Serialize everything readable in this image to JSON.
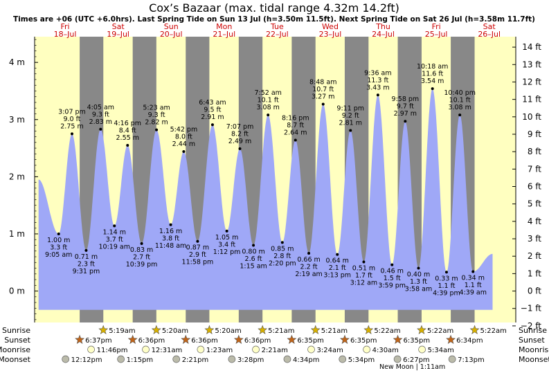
{
  "header": {
    "title": "Cox’s Bazaar (max. tidal range 4.32m 14.2ft)",
    "subtitle": "Times are +06 (UTC +6.0hrs). Last Spring Tide on Sun 13 Jul (h=3.50m 11.5ft). Next Spring Tide on Sat 26 Jul (h=3.58m 11.7ft)"
  },
  "chart_data": {
    "type": "area",
    "title": "Cox’s Bazaar (max. tidal range 4.32m 14.2ft)",
    "x_unit": "hours since 00:00 Fri 18-Jul (+06)",
    "left_axis": {
      "ticks": [
        "0 m",
        "1 m",
        "2 m",
        "3 m",
        "4 m"
      ],
      "values": [
        0,
        1,
        2,
        3,
        4
      ],
      "ylim_m": [
        -0.55,
        4.45
      ]
    },
    "right_axis": {
      "ticks": [
        "−2 ft",
        "−1 ft",
        "0 ft",
        "1 ft",
        "2 ft",
        "3 ft",
        "4 ft",
        "5 ft",
        "6 ft",
        "7 ft",
        "8 ft",
        "9 ft",
        "10 ft",
        "11 ft",
        "12 ft",
        "13 ft",
        "14 ft"
      ],
      "values": [
        -2,
        -1,
        0,
        1,
        2,
        3,
        4,
        5,
        6,
        7,
        8,
        9,
        10,
        11,
        12,
        13,
        14
      ]
    },
    "days": [
      {
        "dow": "Fri",
        "date": "18–Jul"
      },
      {
        "dow": "Sat",
        "date": "19–Jul"
      },
      {
        "dow": "Sun",
        "date": "20–Jul"
      },
      {
        "dow": "Mon",
        "date": "21–Jul"
      },
      {
        "dow": "Tue",
        "date": "22–Jul"
      },
      {
        "dow": "Wed",
        "date": "23–Jul"
      },
      {
        "dow": "Thu",
        "date": "24–Jul"
      },
      {
        "dow": "Fri",
        "date": "25–Jul"
      },
      {
        "dow": "Sat",
        "date": "26–Jul"
      }
    ],
    "night_bands": [
      {
        "from": 18.6,
        "to": 29.3
      },
      {
        "from": 42.6,
        "to": 53.3
      },
      {
        "from": 66.6,
        "to": 77.3
      },
      {
        "from": 90.6,
        "to": 101.35
      },
      {
        "from": 114.58,
        "to": 125.35
      },
      {
        "from": 138.58,
        "to": 149.35
      },
      {
        "from": 162.58,
        "to": 173.37
      },
      {
        "from": 186.57,
        "to": 197.37
      }
    ],
    "curve_start": {
      "t": 0,
      "h": 1.95
    },
    "curve_end": {
      "t": 205.5,
      "h": 0.65
    },
    "series": [
      {
        "name": "tides",
        "points": [
          {
            "t": 9.08,
            "h": 1.0,
            "type": "low",
            "lines": [
              "1.00 m",
              "3.3 ft",
              "9:05 am"
            ]
          },
          {
            "t": 15.12,
            "h": 2.75,
            "type": "high",
            "lines": [
              "3:07 pm",
              "9.0 ft",
              "2.75 m"
            ]
          },
          {
            "t": 21.52,
            "h": 0.71,
            "type": "low",
            "lines": [
              "0.71 m",
              "2.3 ft",
              "9:31 pm"
            ]
          },
          {
            "t": 28.08,
            "h": 2.83,
            "type": "high",
            "lines": [
              "4:05 am",
              "9.3 ft",
              "2.83 m"
            ]
          },
          {
            "t": 34.32,
            "h": 1.14,
            "type": "low",
            "lines": [
              "1.14 m",
              "3.7 ft",
              "10:19 am"
            ]
          },
          {
            "t": 40.27,
            "h": 2.55,
            "type": "high",
            "lines": [
              "4:16 pm",
              "8.4 ft",
              "2.55 m"
            ]
          },
          {
            "t": 46.65,
            "h": 0.83,
            "type": "low",
            "lines": [
              "0.83 m",
              "2.7 ft",
              "10:39 pm"
            ]
          },
          {
            "t": 53.38,
            "h": 2.82,
            "type": "high",
            "lines": [
              "5:23 am",
              "9.3 ft",
              "2.82 m"
            ]
          },
          {
            "t": 59.8,
            "h": 1.16,
            "type": "low",
            "lines": [
              "1.16 m",
              "3.8 ft",
              "11:48 am"
            ]
          },
          {
            "t": 65.7,
            "h": 2.44,
            "type": "high",
            "lines": [
              "5:42 pm",
              "8.0 ft",
              "2.44 m"
            ]
          },
          {
            "t": 71.97,
            "h": 0.87,
            "type": "low",
            "lines": [
              "0.87 m",
              "2.9 ft",
              "11:58 pm"
            ]
          },
          {
            "t": 78.72,
            "h": 2.91,
            "type": "high",
            "lines": [
              "6:43 am",
              "9.5 ft",
              "2.91 m"
            ]
          },
          {
            "t": 85.2,
            "h": 1.05,
            "type": "low",
            "lines": [
              "1.05 m",
              "3.4 ft",
              "1:12 pm"
            ]
          },
          {
            "t": 91.12,
            "h": 2.49,
            "type": "high",
            "lines": [
              "7:07 pm",
              "8.2 ft",
              "2.49 m"
            ]
          },
          {
            "t": 97.25,
            "h": 0.8,
            "type": "low",
            "lines": [
              "0.80 m",
              "2.6 ft",
              "1:15 am"
            ]
          },
          {
            "t": 103.87,
            "h": 3.08,
            "type": "high",
            "lines": [
              "7:52 am",
              "10.1 ft",
              "3.08 m"
            ]
          },
          {
            "t": 110.33,
            "h": 0.85,
            "type": "low",
            "lines": [
              "0.85 m",
              "2.8 ft",
              "2:20 pm"
            ]
          },
          {
            "t": 116.27,
            "h": 2.64,
            "type": "high",
            "lines": [
              "8:16 pm",
              "8.7 ft",
              "2.64 m"
            ]
          },
          {
            "t": 122.32,
            "h": 0.66,
            "type": "low",
            "lines": [
              "0.66 m",
              "2.2 ft",
              "2:19 am"
            ]
          },
          {
            "t": 128.8,
            "h": 3.27,
            "type": "high",
            "lines": [
              "8:48 am",
              "10.7 ft",
              "3.27 m"
            ]
          },
          {
            "t": 135.22,
            "h": 0.64,
            "type": "low",
            "lines": [
              "0.64 m",
              "2.1 ft",
              "3:13 pm"
            ]
          },
          {
            "t": 141.18,
            "h": 2.81,
            "type": "high",
            "lines": [
              "9:11 pm",
              "9.2 ft",
              "2.81 m"
            ]
          },
          {
            "t": 147.2,
            "h": 0.51,
            "type": "low",
            "lines": [
              "0.51 m",
              "1.7 ft",
              "3:12 am"
            ]
          },
          {
            "t": 153.6,
            "h": 3.43,
            "type": "high",
            "lines": [
              "9:36 am",
              "11.3 ft",
              "3.43 m"
            ]
          },
          {
            "t": 159.98,
            "h": 0.46,
            "type": "low",
            "lines": [
              "0.46 m",
              "1.5 ft",
              "3:59 pm"
            ]
          },
          {
            "t": 165.97,
            "h": 2.97,
            "type": "high",
            "lines": [
              "9:58 pm",
              "9.7 ft",
              "2.97 m"
            ]
          },
          {
            "t": 171.97,
            "h": 0.4,
            "type": "low",
            "lines": [
              "0.40 m",
              "1.3 ft",
              "3:58 am"
            ]
          },
          {
            "t": 178.3,
            "h": 3.54,
            "type": "high",
            "lines": [
              "10:18 am",
              "11.6 ft",
              "3.54 m"
            ]
          },
          {
            "t": 184.65,
            "h": 0.33,
            "type": "low",
            "lines": [
              "0.33 m",
              "1.1 ft",
              "4:39 pm"
            ]
          },
          {
            "t": 190.67,
            "h": 3.08,
            "type": "high",
            "lines": [
              "10:40 pm",
              "10.1 ft",
              "3.08 m"
            ]
          },
          {
            "t": 196.65,
            "h": 0.34,
            "type": "low",
            "lines": [
              "0.34 m",
              "1.1 ft",
              "4:39 am"
            ]
          }
        ]
      }
    ],
    "colors": {
      "water": "#9fa8f7",
      "day": "#ffffc0",
      "night": "#888888",
      "day_label": "#cc0000",
      "sunrise_star": "#d7b000",
      "sunset_star": "#c06418",
      "moonrise": "#ffffc8",
      "moonset": "#bbbbaa"
    }
  },
  "astro": {
    "sunrise": {
      "label": "Sunrise",
      "events": [
        {
          "t": 29.3,
          "text": "5:19am"
        },
        {
          "t": 53.3,
          "text": "5:20am"
        },
        {
          "t": 77.3,
          "text": "5:20am"
        },
        {
          "t": 101.35,
          "text": "5:21am"
        },
        {
          "t": 125.35,
          "text": "5:21am"
        },
        {
          "t": 149.35,
          "text": "5:22am"
        },
        {
          "t": 173.37,
          "text": "5:22am"
        },
        {
          "t": 197.37,
          "text": "5:22am"
        }
      ]
    },
    "sunset": {
      "label": "Sunset",
      "events": [
        {
          "t": 18.6,
          "text": "6:37pm"
        },
        {
          "t": 42.6,
          "text": "6:36pm"
        },
        {
          "t": 66.6,
          "text": "6:36pm"
        },
        {
          "t": 90.6,
          "text": "6:36pm"
        },
        {
          "t": 114.58,
          "text": "6:35pm"
        },
        {
          "t": 138.58,
          "text": "6:35pm"
        },
        {
          "t": 162.58,
          "text": "6:35pm"
        },
        {
          "t": 186.57,
          "text": "6:34pm"
        }
      ]
    },
    "moonrise": {
      "label": "Moonrise",
      "events": [
        {
          "t": 23.77,
          "text": "11:46pm"
        },
        {
          "t": 48.52,
          "text": "12:31am"
        },
        {
          "t": 73.38,
          "text": "1:23am"
        },
        {
          "t": 98.35,
          "text": "2:21am"
        },
        {
          "t": 123.4,
          "text": "3:24am"
        },
        {
          "t": 148.5,
          "text": "4:30am"
        },
        {
          "t": 173.57,
          "text": "5:34am"
        }
      ]
    },
    "moonset": {
      "label": "Moonset",
      "events": [
        {
          "t": 12.2,
          "text": "12:12pm"
        },
        {
          "t": 37.25,
          "text": "1:15pm"
        },
        {
          "t": 62.35,
          "text": "2:21pm"
        },
        {
          "t": 87.47,
          "text": "3:28pm"
        },
        {
          "t": 112.57,
          "text": "4:34pm"
        },
        {
          "t": 137.57,
          "text": "5:34pm"
        },
        {
          "t": 162.45,
          "text": "6:27pm"
        },
        {
          "t": 187.22,
          "text": "7:13pm"
        }
      ]
    },
    "phase_note": {
      "t": 169.18,
      "text": "New Moon | 1:11am"
    }
  }
}
